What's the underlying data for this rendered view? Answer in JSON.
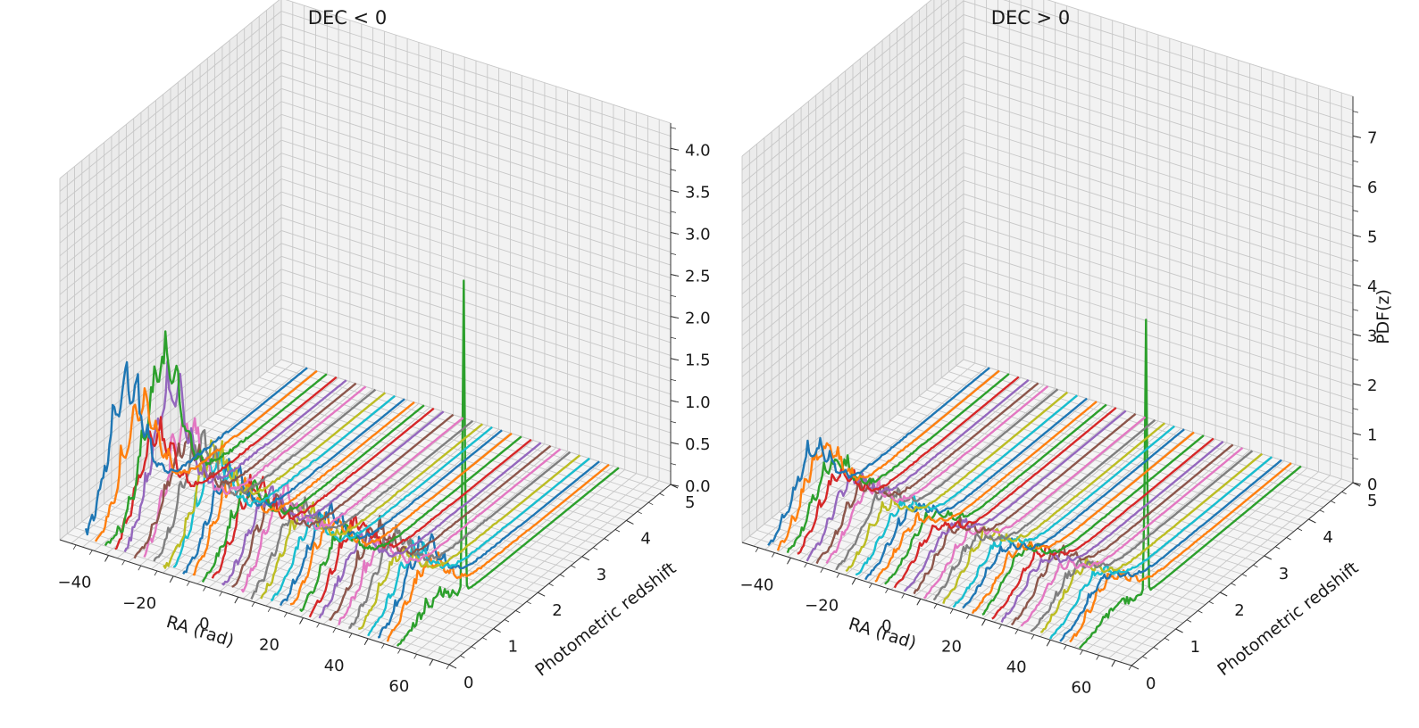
{
  "chart_data": [
    {
      "type": "line",
      "projection": "3d",
      "title": "DEC < 0",
      "xlabel": "RA (rad)",
      "ylabel": "Photometric redshift",
      "zlabel": "",
      "xlim": [
        -55,
        65
      ],
      "ylim": [
        0,
        5
      ],
      "zlim": [
        0,
        4.3
      ],
      "x_ticks": [
        "−40",
        "−20",
        "0",
        "20",
        "40",
        "60"
      ],
      "y_ticks": [
        "0",
        "1",
        "2",
        "3",
        "4",
        "5"
      ],
      "z_ticks": [
        "0.0",
        "0.5",
        "1.0",
        "1.5",
        "2.0",
        "2.5",
        "3.0",
        "3.5",
        "4.0"
      ],
      "grid": true,
      "legend": "none",
      "n_series": 33,
      "series_x": [
        -47,
        -44,
        -41,
        -38,
        -35,
        -32,
        -29,
        -26,
        -23,
        -20,
        -17,
        -14,
        -11,
        -8,
        -5,
        -2,
        1,
        4,
        7,
        10,
        13,
        16,
        19,
        22,
        25,
        28,
        31,
        34,
        37,
        40,
        43,
        46,
        49
      ],
      "series_colors": [
        "#1f77b4",
        "#ff7f0e",
        "#2ca02c",
        "#d62728",
        "#9467bd",
        "#8c564b",
        "#e377c2",
        "#7f7f7f",
        "#bcbd22",
        "#17becf"
      ],
      "approx_peak_pdf": [
        1.3,
        1.1,
        1.5,
        0.9,
        1.4,
        0.8,
        1.1,
        0.9,
        0.8,
        0.8,
        0.7,
        0.7,
        0.6,
        0.7,
        0.6,
        0.6,
        0.7,
        0.6,
        0.6,
        0.5,
        0.6,
        0.6,
        0.5,
        0.6,
        0.5,
        0.6,
        0.5,
        0.6,
        0.5,
        0.5,
        0.6,
        0.5,
        3.7
      ],
      "approx_peak_redshift": [
        0.9,
        1.0,
        1.3,
        0.9,
        1.0,
        1.1,
        0.9,
        1.0,
        1.1,
        0.9,
        1.0,
        0.9,
        1.0,
        0.9,
        1.0,
        0.9,
        0.9,
        1.0,
        0.9,
        0.9,
        1.0,
        0.9,
        0.9,
        1.0,
        0.9,
        1.0,
        0.9,
        1.0,
        0.9,
        1.0,
        1.0,
        0.9,
        1.5
      ]
    },
    {
      "type": "line",
      "projection": "3d",
      "title": "DEC > 0",
      "xlabel": "RA (rad)",
      "ylabel": "Photometric redshift",
      "zlabel": "PDF(z)",
      "xlim": [
        -55,
        65
      ],
      "ylim": [
        0,
        5
      ],
      "zlim": [
        0,
        7.8
      ],
      "x_ticks": [
        "−40",
        "−20",
        "0",
        "20",
        "40",
        "60"
      ],
      "y_ticks": [
        "0",
        "1",
        "2",
        "3",
        "4",
        "5"
      ],
      "z_ticks": [
        "0",
        "1",
        "2",
        "3",
        "4",
        "5",
        "6",
        "7"
      ],
      "grid": true,
      "legend": "none",
      "n_series": 33,
      "series_x": [
        -47,
        -44,
        -41,
        -38,
        -35,
        -32,
        -29,
        -26,
        -23,
        -20,
        -17,
        -14,
        -11,
        -8,
        -5,
        -2,
        1,
        4,
        7,
        10,
        13,
        16,
        19,
        22,
        25,
        28,
        31,
        34,
        37,
        40,
        43,
        46,
        49
      ],
      "series_colors": [
        "#1f77b4",
        "#ff7f0e",
        "#2ca02c",
        "#d62728",
        "#9467bd",
        "#8c564b",
        "#e377c2",
        "#7f7f7f",
        "#bcbd22",
        "#17becf"
      ],
      "approx_peak_pdf": [
        1.1,
        1.2,
        1.0,
        0.9,
        0.8,
        0.7,
        0.8,
        0.7,
        0.6,
        0.6,
        0.6,
        0.5,
        0.6,
        0.5,
        0.5,
        0.6,
        0.5,
        0.5,
        0.6,
        0.5,
        0.5,
        0.5,
        0.6,
        0.5,
        0.5,
        0.6,
        0.5,
        0.5,
        0.6,
        0.5,
        0.5,
        0.6,
        5.5
      ],
      "approx_peak_redshift": [
        1.0,
        1.0,
        1.0,
        0.9,
        1.0,
        1.0,
        0.9,
        1.0,
        0.9,
        1.0,
        1.0,
        0.9,
        1.0,
        0.9,
        1.0,
        0.9,
        1.0,
        0.9,
        0.9,
        1.0,
        0.9,
        1.0,
        0.9,
        1.0,
        0.9,
        1.0,
        0.9,
        1.0,
        0.9,
        1.0,
        1.0,
        0.9,
        1.5
      ]
    }
  ]
}
